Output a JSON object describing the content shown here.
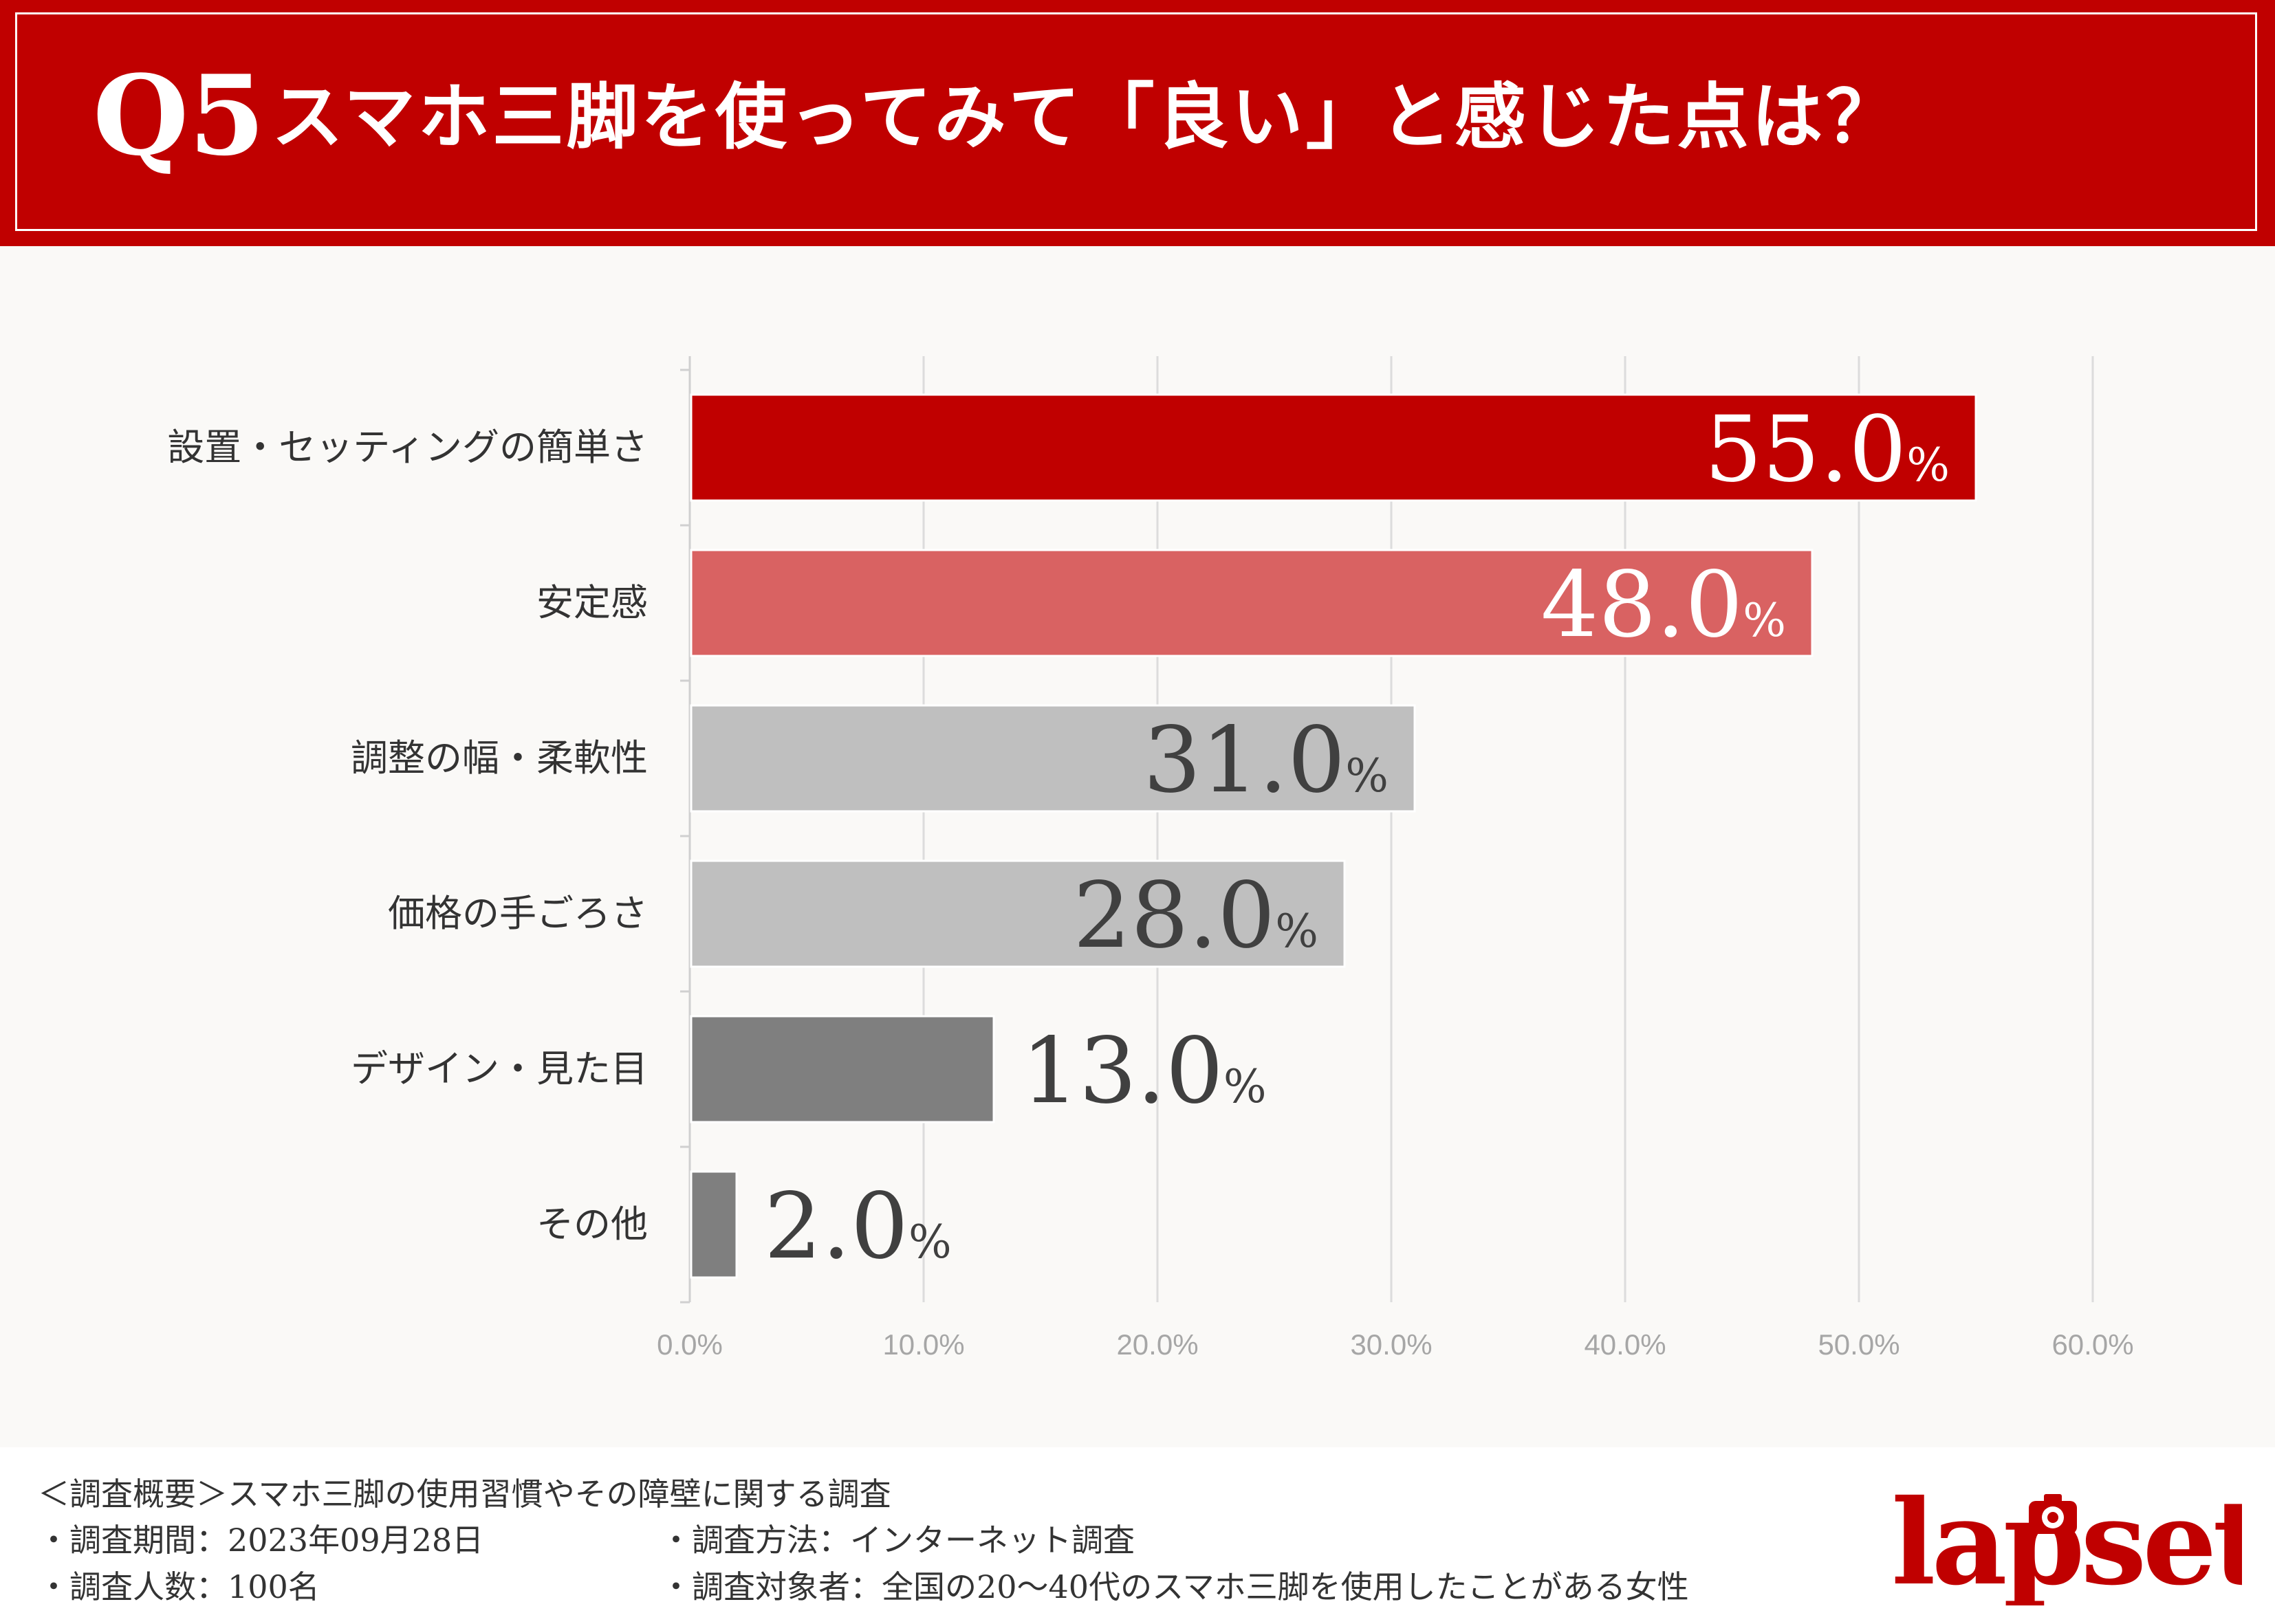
{
  "header": {
    "q_number": "Q5",
    "title": "スマホ三脚を使ってみて「良い」と感じた点は？"
  },
  "colors": {
    "header_bg": "#c00000",
    "bars": [
      "#c00000",
      "#d96262",
      "#bfbfbf",
      "#bfbfbf",
      "#7f7f7f",
      "#7f7f7f"
    ],
    "labels_in_bar": [
      "#ffffff",
      "#ffffff",
      "#404040",
      "#404040",
      "#404040",
      "#404040"
    ]
  },
  "chart_data": {
    "type": "bar",
    "orientation": "horizontal",
    "categories": [
      "設置・セッティングの簡単さ",
      "安定感",
      "調整の幅・柔軟性",
      "価格の手ごろさ",
      "デザイン・見た目",
      "その他"
    ],
    "values": [
      55.0,
      48.0,
      31.0,
      28.0,
      13.0,
      2.0
    ],
    "value_labels": [
      "55.0",
      "48.0",
      "31.0",
      "28.0",
      "13.0",
      "2.0"
    ],
    "value_unit": "%",
    "xlim": [
      0,
      60
    ],
    "xticks": [
      "0.0%",
      "10.0%",
      "20.0%",
      "30.0%",
      "40.0%",
      "50.0%",
      "60.0%"
    ],
    "grid": "vertical"
  },
  "footer": {
    "summary": "＜調査概要＞スマホ三脚の使用習慣やその障壁に関する調査",
    "period": "・調査期間：2023年09月28日",
    "count": "・調査人数：100名",
    "method": "・調査方法：インターネット調査",
    "target": "・調査対象者：全国の20～40代のスマホ三脚を使用したことがある女性",
    "logo_text": "lapset"
  }
}
